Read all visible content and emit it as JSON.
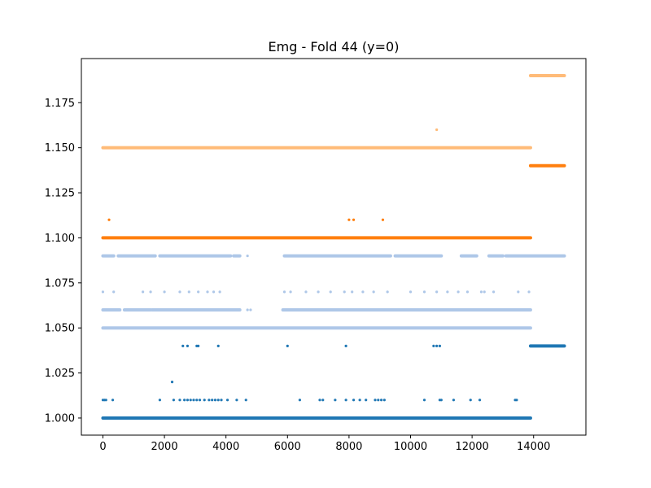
{
  "chart_data": {
    "type": "scatter",
    "title": "Emg - Fold 44 (y=0)",
    "xlabel": "",
    "ylabel": "",
    "xlim": [
      -700,
      15700
    ],
    "ylim": [
      0.9905,
      1.1995
    ],
    "x_ticks": [
      0,
      2000,
      4000,
      6000,
      8000,
      10000,
      12000,
      14000
    ],
    "x_tick_labels": [
      "0",
      "2000",
      "4000",
      "6000",
      "8000",
      "10000",
      "12000",
      "14000"
    ],
    "y_ticks": [
      1.0,
      1.025,
      1.05,
      1.075,
      1.1,
      1.125,
      1.15,
      1.175
    ],
    "y_tick_labels": [
      "1.000",
      "1.025",
      "1.050",
      "1.075",
      "1.100",
      "1.125",
      "1.150",
      "1.175"
    ],
    "grid": false,
    "legend": "none",
    "series": [
      {
        "color": "#1f77b4",
        "segments": [
          {
            "x_start": 0,
            "x_end": 13900,
            "y": 1.0
          },
          {
            "x_start": 13900,
            "x_end": 15000,
            "y": 1.04
          }
        ],
        "points": [
          {
            "x": 0,
            "y": 1.01
          },
          {
            "x": 50,
            "y": 1.01
          },
          {
            "x": 100,
            "y": 1.01
          },
          {
            "x": 320,
            "y": 1.01
          },
          {
            "x": 1850,
            "y": 1.01
          },
          {
            "x": 2300,
            "y": 1.01
          },
          {
            "x": 2500,
            "y": 1.01
          },
          {
            "x": 2650,
            "y": 1.01
          },
          {
            "x": 2750,
            "y": 1.01
          },
          {
            "x": 2850,
            "y": 1.01
          },
          {
            "x": 2950,
            "y": 1.01
          },
          {
            "x": 3050,
            "y": 1.01
          },
          {
            "x": 3150,
            "y": 1.01
          },
          {
            "x": 3300,
            "y": 1.01
          },
          {
            "x": 3450,
            "y": 1.01
          },
          {
            "x": 3550,
            "y": 1.01
          },
          {
            "x": 3650,
            "y": 1.01
          },
          {
            "x": 3750,
            "y": 1.01
          },
          {
            "x": 3850,
            "y": 1.01
          },
          {
            "x": 4050,
            "y": 1.01
          },
          {
            "x": 4350,
            "y": 1.01
          },
          {
            "x": 4650,
            "y": 1.01
          },
          {
            "x": 6400,
            "y": 1.01
          },
          {
            "x": 7050,
            "y": 1.01
          },
          {
            "x": 7150,
            "y": 1.01
          },
          {
            "x": 7550,
            "y": 1.01
          },
          {
            "x": 7900,
            "y": 1.01
          },
          {
            "x": 8150,
            "y": 1.01
          },
          {
            "x": 8350,
            "y": 1.01
          },
          {
            "x": 8550,
            "y": 1.01
          },
          {
            "x": 8850,
            "y": 1.01
          },
          {
            "x": 8950,
            "y": 1.01
          },
          {
            "x": 9050,
            "y": 1.01
          },
          {
            "x": 9150,
            "y": 1.01
          },
          {
            "x": 10450,
            "y": 1.01
          },
          {
            "x": 10950,
            "y": 1.01
          },
          {
            "x": 11000,
            "y": 1.01
          },
          {
            "x": 11400,
            "y": 1.01
          },
          {
            "x": 11950,
            "y": 1.01
          },
          {
            "x": 12250,
            "y": 1.01
          },
          {
            "x": 13400,
            "y": 1.01
          },
          {
            "x": 13450,
            "y": 1.01
          },
          {
            "x": 2250,
            "y": 1.02
          },
          {
            "x": 2600,
            "y": 1.04
          },
          {
            "x": 2750,
            "y": 1.04
          },
          {
            "x": 3050,
            "y": 1.04
          },
          {
            "x": 3100,
            "y": 1.04
          },
          {
            "x": 3750,
            "y": 1.04
          },
          {
            "x": 6000,
            "y": 1.04
          },
          {
            "x": 7900,
            "y": 1.04
          },
          {
            "x": 10750,
            "y": 1.04
          },
          {
            "x": 10850,
            "y": 1.04
          },
          {
            "x": 10950,
            "y": 1.04
          }
        ]
      },
      {
        "color": "#aec7e8",
        "segments": [
          {
            "x_start": 0,
            "x_end": 13900,
            "y": 1.05
          },
          {
            "x_start": 0,
            "x_end": 13900,
            "y": 1.06,
            "gaps": [
              [
                550,
                700
              ],
              [
                1550,
                1600
              ],
              [
                4450,
                5850
              ]
            ]
          },
          {
            "x_start": 0,
            "x_end": 15000,
            "y": 1.09,
            "gaps": [
              [
                350,
                500
              ],
              [
                1700,
                1850
              ],
              [
                4150,
                4250
              ],
              [
                4450,
                5900
              ],
              [
                9350,
                9500
              ],
              [
                11000,
                11650
              ],
              [
                12150,
                12550
              ],
              [
                13000,
                13100
              ]
            ]
          }
        ],
        "points": [
          {
            "x": 0,
            "y": 1.07
          },
          {
            "x": 350,
            "y": 1.07
          },
          {
            "x": 1300,
            "y": 1.07
          },
          {
            "x": 1550,
            "y": 1.07
          },
          {
            "x": 2000,
            "y": 1.07
          },
          {
            "x": 2500,
            "y": 1.07
          },
          {
            "x": 2800,
            "y": 1.07
          },
          {
            "x": 3100,
            "y": 1.07
          },
          {
            "x": 3400,
            "y": 1.07
          },
          {
            "x": 3600,
            "y": 1.07
          },
          {
            "x": 3800,
            "y": 1.07
          },
          {
            "x": 5900,
            "y": 1.07
          },
          {
            "x": 6100,
            "y": 1.07
          },
          {
            "x": 6600,
            "y": 1.07
          },
          {
            "x": 7000,
            "y": 1.07
          },
          {
            "x": 7400,
            "y": 1.07
          },
          {
            "x": 7850,
            "y": 1.07
          },
          {
            "x": 8100,
            "y": 1.07
          },
          {
            "x": 8450,
            "y": 1.07
          },
          {
            "x": 8800,
            "y": 1.07
          },
          {
            "x": 9250,
            "y": 1.07
          },
          {
            "x": 10000,
            "y": 1.07
          },
          {
            "x": 10450,
            "y": 1.07
          },
          {
            "x": 10850,
            "y": 1.07
          },
          {
            "x": 11200,
            "y": 1.07
          },
          {
            "x": 11550,
            "y": 1.07
          },
          {
            "x": 11850,
            "y": 1.07
          },
          {
            "x": 12300,
            "y": 1.07
          },
          {
            "x": 12400,
            "y": 1.07
          },
          {
            "x": 12700,
            "y": 1.07
          },
          {
            "x": 13500,
            "y": 1.07
          },
          {
            "x": 13850,
            "y": 1.07
          },
          {
            "x": 4700,
            "y": 1.06
          },
          {
            "x": 4800,
            "y": 1.06
          },
          {
            "x": 4700,
            "y": 1.09
          }
        ]
      },
      {
        "color": "#ff7f0e",
        "segments": [
          {
            "x_start": 0,
            "x_end": 13900,
            "y": 1.1
          },
          {
            "x_start": 13900,
            "x_end": 15000,
            "y": 1.14
          }
        ],
        "points": [
          {
            "x": 200,
            "y": 1.11
          },
          {
            "x": 8000,
            "y": 1.11
          },
          {
            "x": 8150,
            "y": 1.11
          },
          {
            "x": 9100,
            "y": 1.11
          }
        ]
      },
      {
        "color": "#ffbb78",
        "segments": [
          {
            "x_start": 0,
            "x_end": 13900,
            "y": 1.15
          },
          {
            "x_start": 13900,
            "x_end": 15000,
            "y": 1.19
          }
        ],
        "points": [
          {
            "x": 10850,
            "y": 1.16
          }
        ]
      }
    ]
  }
}
